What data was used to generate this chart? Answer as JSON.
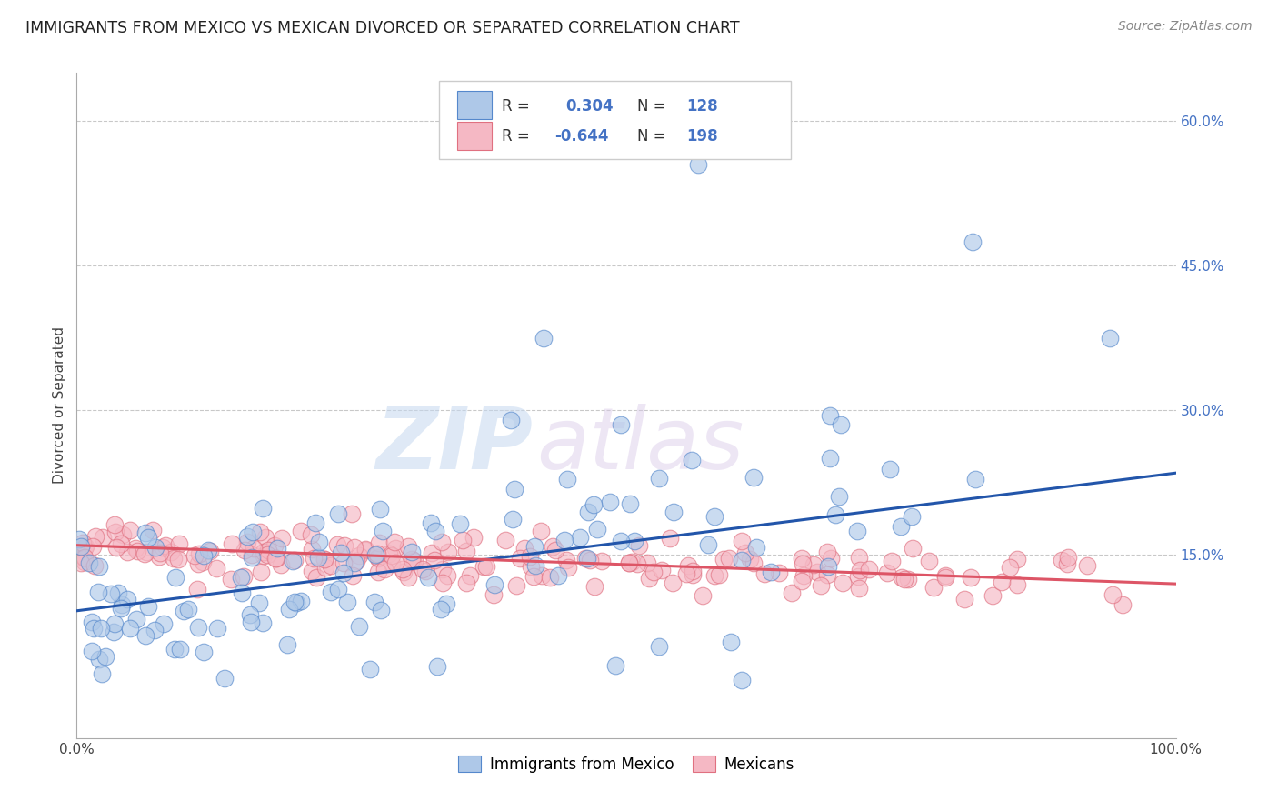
{
  "title": "IMMIGRANTS FROM MEXICO VS MEXICAN DIVORCED OR SEPARATED CORRELATION CHART",
  "source": "Source: ZipAtlas.com",
  "ylabel": "Divorced or Separated",
  "xlim": [
    0,
    1.0
  ],
  "ylim": [
    -0.04,
    0.65
  ],
  "blue_R": "0.304",
  "blue_N": "128",
  "pink_R": "-0.644",
  "pink_N": "198",
  "blue_fill": "#aec8e8",
  "pink_fill": "#f5b8c4",
  "blue_edge": "#5588cc",
  "pink_edge": "#e07080",
  "blue_line_color": "#2255aa",
  "pink_line_color": "#dd5566",
  "grid_color": "#bbbbbb",
  "legend_label_blue": "Immigrants from Mexico",
  "legend_label_pink": "Mexicans",
  "watermark_zip": "ZIP",
  "watermark_atlas": "atlas",
  "title_fontsize": 12.5,
  "source_fontsize": 10,
  "axis_label_fontsize": 11,
  "tick_fontsize": 11,
  "blue_line_x0": 0.0,
  "blue_line_x1": 1.0,
  "blue_line_y0": 0.092,
  "blue_line_y1": 0.235,
  "pink_line_x0": 0.0,
  "pink_line_x1": 1.0,
  "pink_line_y0": 0.16,
  "pink_line_y1": 0.12
}
